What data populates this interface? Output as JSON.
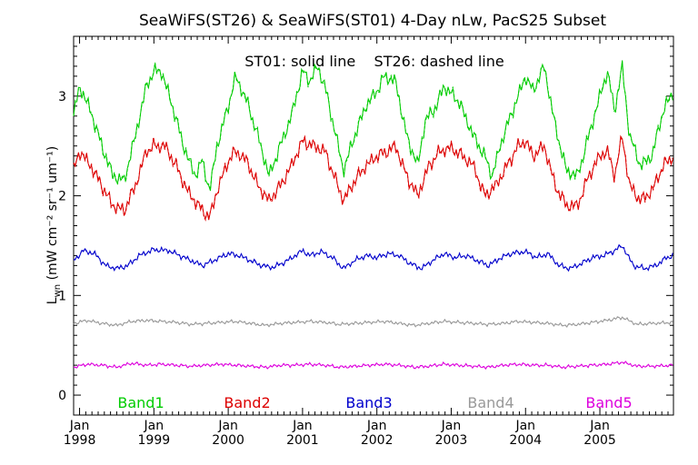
{
  "chart_data": {
    "type": "line",
    "title": "SeaWiFS(ST26) & SeaWiFS(ST01) 4-Day nLw, PacS25 Subset",
    "annotation": "ST01: solid line    ST26: dashed line",
    "ylabel": {
      "main": "L",
      "sub": "wn",
      "units": "(mW cm⁻² sr⁻¹ um⁻¹)"
    },
    "ylim": [
      -0.2,
      3.6
    ],
    "yticks": [
      "0",
      "1",
      "2",
      "3"
    ],
    "xlim": [
      1997.92,
      2005.99
    ],
    "xticks": [
      {
        "month": "Jan",
        "year": "1998"
      },
      {
        "month": "Jan",
        "year": "1999"
      },
      {
        "month": "Jan",
        "year": "2000"
      },
      {
        "month": "Jan",
        "year": "2001"
      },
      {
        "month": "Jan",
        "year": "2002"
      },
      {
        "month": "Jan",
        "year": "2003"
      },
      {
        "month": "Jan",
        "year": "2004"
      },
      {
        "month": "Jan",
        "year": "2005"
      }
    ],
    "series": [
      {
        "name": "Band1",
        "color": "#00cc00",
        "anchors": [
          [
            1997.92,
            2.8
          ],
          [
            1998.0,
            3.1
          ],
          [
            1998.15,
            2.85
          ],
          [
            1998.3,
            2.5
          ],
          [
            1998.45,
            2.2
          ],
          [
            1998.6,
            2.15
          ],
          [
            1998.75,
            2.6
          ],
          [
            1998.9,
            3.1
          ],
          [
            1999.0,
            3.25
          ],
          [
            1999.1,
            3.25
          ],
          [
            1999.25,
            2.9
          ],
          [
            1999.4,
            2.5
          ],
          [
            1999.55,
            2.2
          ],
          [
            1999.65,
            2.35
          ],
          [
            1999.75,
            2.05
          ],
          [
            1999.85,
            2.5
          ],
          [
            2000.0,
            2.9
          ],
          [
            2000.1,
            3.2
          ],
          [
            2000.25,
            2.95
          ],
          [
            2000.4,
            2.6
          ],
          [
            2000.55,
            2.2
          ],
          [
            2000.7,
            2.5
          ],
          [
            2000.85,
            2.8
          ],
          [
            2001.0,
            3.25
          ],
          [
            2001.1,
            3.15
          ],
          [
            2001.2,
            3.3
          ],
          [
            2001.3,
            3.1
          ],
          [
            2001.45,
            2.6
          ],
          [
            2001.55,
            2.25
          ],
          [
            2001.7,
            2.6
          ],
          [
            2001.85,
            2.9
          ],
          [
            2002.0,
            3.05
          ],
          [
            2002.1,
            3.2
          ],
          [
            2002.25,
            3.15
          ],
          [
            2002.4,
            2.6
          ],
          [
            2002.55,
            2.3
          ],
          [
            2002.65,
            2.75
          ],
          [
            2002.8,
            2.9
          ],
          [
            2002.9,
            3.1
          ],
          [
            2003.1,
            2.95
          ],
          [
            2003.3,
            2.6
          ],
          [
            2003.45,
            2.4
          ],
          [
            2003.55,
            2.2
          ],
          [
            2003.7,
            2.6
          ],
          [
            2003.85,
            2.9
          ],
          [
            2004.0,
            3.2
          ],
          [
            2004.1,
            3.05
          ],
          [
            2004.25,
            3.3
          ],
          [
            2004.4,
            2.7
          ],
          [
            2004.55,
            2.25
          ],
          [
            2004.7,
            2.2
          ],
          [
            2004.85,
            2.6
          ],
          [
            2005.0,
            3.0
          ],
          [
            2005.1,
            3.25
          ],
          [
            2005.2,
            2.85
          ],
          [
            2005.3,
            3.3
          ],
          [
            2005.4,
            2.6
          ],
          [
            2005.55,
            2.3
          ],
          [
            2005.7,
            2.4
          ],
          [
            2005.85,
            2.85
          ],
          [
            2005.99,
            3.05
          ]
        ]
      },
      {
        "name": "Band2",
        "color": "#dd0000",
        "anchors": [
          [
            1997.92,
            2.25
          ],
          [
            1998.0,
            2.45
          ],
          [
            1998.15,
            2.3
          ],
          [
            1998.3,
            2.1
          ],
          [
            1998.45,
            1.9
          ],
          [
            1998.6,
            1.85
          ],
          [
            1998.75,
            2.1
          ],
          [
            1998.9,
            2.45
          ],
          [
            1999.0,
            2.5
          ],
          [
            1999.15,
            2.5
          ],
          [
            1999.3,
            2.3
          ],
          [
            1999.45,
            2.05
          ],
          [
            1999.6,
            1.9
          ],
          [
            1999.75,
            1.78
          ],
          [
            1999.85,
            2.05
          ],
          [
            2000.0,
            2.35
          ],
          [
            2000.1,
            2.45
          ],
          [
            2000.25,
            2.35
          ],
          [
            2000.4,
            2.1
          ],
          [
            2000.55,
            1.95
          ],
          [
            2000.7,
            2.1
          ],
          [
            2000.85,
            2.3
          ],
          [
            2001.0,
            2.55
          ],
          [
            2001.15,
            2.5
          ],
          [
            2001.3,
            2.45
          ],
          [
            2001.45,
            2.15
          ],
          [
            2001.55,
            1.95
          ],
          [
            2001.7,
            2.15
          ],
          [
            2001.85,
            2.3
          ],
          [
            2002.0,
            2.4
          ],
          [
            2002.15,
            2.45
          ],
          [
            2002.25,
            2.5
          ],
          [
            2002.4,
            2.2
          ],
          [
            2002.55,
            2.0
          ],
          [
            2002.7,
            2.3
          ],
          [
            2002.85,
            2.45
          ],
          [
            2003.0,
            2.48
          ],
          [
            2003.15,
            2.4
          ],
          [
            2003.3,
            2.3
          ],
          [
            2003.45,
            2.0
          ],
          [
            2003.6,
            2.1
          ],
          [
            2003.75,
            2.3
          ],
          [
            2003.9,
            2.5
          ],
          [
            2004.0,
            2.55
          ],
          [
            2004.1,
            2.4
          ],
          [
            2004.25,
            2.5
          ],
          [
            2004.4,
            2.1
          ],
          [
            2004.55,
            1.9
          ],
          [
            2004.7,
            1.9
          ],
          [
            2004.85,
            2.2
          ],
          [
            2005.0,
            2.4
          ],
          [
            2005.1,
            2.45
          ],
          [
            2005.2,
            2.2
          ],
          [
            2005.3,
            2.6
          ],
          [
            2005.4,
            2.1
          ],
          [
            2005.55,
            1.95
          ],
          [
            2005.7,
            2.05
          ],
          [
            2005.85,
            2.3
          ],
          [
            2005.99,
            2.4
          ]
        ]
      },
      {
        "name": "Band3",
        "color": "#0000cc",
        "anchors": [
          [
            1997.92,
            1.35
          ],
          [
            1998.05,
            1.45
          ],
          [
            1998.2,
            1.42
          ],
          [
            1998.35,
            1.3
          ],
          [
            1998.5,
            1.27
          ],
          [
            1998.65,
            1.3
          ],
          [
            1998.8,
            1.4
          ],
          [
            1999.0,
            1.46
          ],
          [
            1999.2,
            1.45
          ],
          [
            1999.35,
            1.4
          ],
          [
            1999.5,
            1.35
          ],
          [
            1999.65,
            1.3
          ],
          [
            1999.8,
            1.35
          ],
          [
            2000.0,
            1.42
          ],
          [
            2000.15,
            1.4
          ],
          [
            2000.3,
            1.35
          ],
          [
            2000.45,
            1.3
          ],
          [
            2000.6,
            1.28
          ],
          [
            2000.8,
            1.35
          ],
          [
            2001.0,
            1.45
          ],
          [
            2001.1,
            1.4
          ],
          [
            2001.25,
            1.44
          ],
          [
            2001.4,
            1.38
          ],
          [
            2001.55,
            1.27
          ],
          [
            2001.7,
            1.35
          ],
          [
            2001.85,
            1.4
          ],
          [
            2002.0,
            1.38
          ],
          [
            2002.15,
            1.42
          ],
          [
            2002.3,
            1.4
          ],
          [
            2002.45,
            1.32
          ],
          [
            2002.6,
            1.27
          ],
          [
            2002.75,
            1.35
          ],
          [
            2002.9,
            1.42
          ],
          [
            2003.05,
            1.38
          ],
          [
            2003.2,
            1.4
          ],
          [
            2003.35,
            1.35
          ],
          [
            2003.5,
            1.3
          ],
          [
            2003.65,
            1.37
          ],
          [
            2003.8,
            1.42
          ],
          [
            2004.0,
            1.44
          ],
          [
            2004.15,
            1.38
          ],
          [
            2004.3,
            1.42
          ],
          [
            2004.45,
            1.3
          ],
          [
            2004.6,
            1.27
          ],
          [
            2004.75,
            1.32
          ],
          [
            2004.9,
            1.38
          ],
          [
            2005.05,
            1.4
          ],
          [
            2005.2,
            1.45
          ],
          [
            2005.3,
            1.5
          ],
          [
            2005.45,
            1.3
          ],
          [
            2005.6,
            1.27
          ],
          [
            2005.75,
            1.3
          ],
          [
            2005.9,
            1.38
          ],
          [
            2005.99,
            1.4
          ]
        ]
      },
      {
        "name": "Band4",
        "color": "#999999",
        "anchors": [
          [
            1997.92,
            0.72
          ],
          [
            1998.1,
            0.75
          ],
          [
            1998.3,
            0.72
          ],
          [
            1998.5,
            0.7
          ],
          [
            1998.7,
            0.74
          ],
          [
            1998.9,
            0.75
          ],
          [
            1999.1,
            0.74
          ],
          [
            1999.3,
            0.73
          ],
          [
            1999.5,
            0.71
          ],
          [
            1999.7,
            0.72
          ],
          [
            1999.9,
            0.73
          ],
          [
            2000.1,
            0.74
          ],
          [
            2000.3,
            0.72
          ],
          [
            2000.5,
            0.7
          ],
          [
            2000.7,
            0.72
          ],
          [
            2000.9,
            0.73
          ],
          [
            2001.1,
            0.74
          ],
          [
            2001.3,
            0.73
          ],
          [
            2001.5,
            0.71
          ],
          [
            2001.7,
            0.72
          ],
          [
            2001.9,
            0.73
          ],
          [
            2002.1,
            0.74
          ],
          [
            2002.3,
            0.72
          ],
          [
            2002.5,
            0.7
          ],
          [
            2002.7,
            0.72
          ],
          [
            2002.9,
            0.74
          ],
          [
            2003.1,
            0.73
          ],
          [
            2003.3,
            0.72
          ],
          [
            2003.5,
            0.71
          ],
          [
            2003.7,
            0.72
          ],
          [
            2003.9,
            0.74
          ],
          [
            2004.1,
            0.73
          ],
          [
            2004.3,
            0.72
          ],
          [
            2004.5,
            0.7
          ],
          [
            2004.7,
            0.71
          ],
          [
            2004.9,
            0.73
          ],
          [
            2005.1,
            0.75
          ],
          [
            2005.3,
            0.78
          ],
          [
            2005.5,
            0.71
          ],
          [
            2005.7,
            0.72
          ],
          [
            2005.99,
            0.73
          ]
        ]
      },
      {
        "name": "Band5",
        "color": "#dd00dd",
        "anchors": [
          [
            1997.92,
            0.28
          ],
          [
            1998.1,
            0.31
          ],
          [
            1998.3,
            0.3
          ],
          [
            1998.5,
            0.28
          ],
          [
            1998.7,
            0.32
          ],
          [
            1998.9,
            0.3
          ],
          [
            1999.1,
            0.31
          ],
          [
            1999.3,
            0.3
          ],
          [
            1999.5,
            0.29
          ],
          [
            1999.7,
            0.3
          ],
          [
            1999.9,
            0.31
          ],
          [
            2000.1,
            0.3
          ],
          [
            2000.3,
            0.29
          ],
          [
            2000.5,
            0.28
          ],
          [
            2000.7,
            0.3
          ],
          [
            2000.9,
            0.3
          ],
          [
            2001.1,
            0.31
          ],
          [
            2001.3,
            0.3
          ],
          [
            2001.5,
            0.28
          ],
          [
            2001.7,
            0.29
          ],
          [
            2001.9,
            0.3
          ],
          [
            2002.1,
            0.31
          ],
          [
            2002.3,
            0.3
          ],
          [
            2002.5,
            0.28
          ],
          [
            2002.7,
            0.29
          ],
          [
            2002.9,
            0.31
          ],
          [
            2003.1,
            0.3
          ],
          [
            2003.3,
            0.29
          ],
          [
            2003.5,
            0.28
          ],
          [
            2003.7,
            0.3
          ],
          [
            2003.9,
            0.31
          ],
          [
            2004.1,
            0.3
          ],
          [
            2004.3,
            0.3
          ],
          [
            2004.5,
            0.28
          ],
          [
            2004.7,
            0.29
          ],
          [
            2004.9,
            0.3
          ],
          [
            2005.1,
            0.31
          ],
          [
            2005.3,
            0.33
          ],
          [
            2005.5,
            0.29
          ],
          [
            2005.7,
            0.29
          ],
          [
            2005.99,
            0.3
          ]
        ]
      }
    ],
    "legend_placement": "bottom, inside plot"
  }
}
